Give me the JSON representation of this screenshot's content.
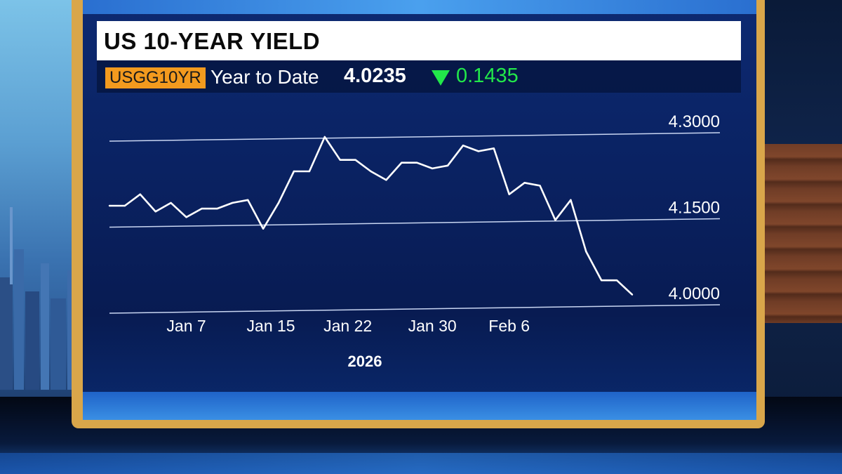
{
  "header": {
    "title": "US 10-YEAR YIELD",
    "ticker": "USGG10YR",
    "period": "Year to Date",
    "last_value": "4.0235",
    "change": "0.1435",
    "change_direction": "down",
    "change_color": "#22e84a",
    "ticker_color": "#f39a1e"
  },
  "chart_data": {
    "type": "line",
    "title": "US 10-YEAR YIELD",
    "xlabel": "2026",
    "ylabel": "",
    "ylim": [
      4.0,
      4.3
    ],
    "yticks": [
      "4.3000",
      "4.1500",
      "4.0000"
    ],
    "ytick_values": [
      4.3,
      4.15,
      4.0
    ],
    "xticks": [
      "Jan 7",
      "Jan 15",
      "Jan 22",
      "Jan 30",
      "Feb 6"
    ],
    "xtick_positions": [
      5,
      10.5,
      15.5,
      21,
      26
    ],
    "grid": true,
    "line_color": "#ffffff",
    "series": [
      {
        "values": [
          4.18,
          4.18,
          4.2,
          4.17,
          4.185,
          4.16,
          4.175,
          4.175,
          4.185,
          4.19,
          4.14,
          4.185,
          4.24,
          4.24,
          4.3,
          4.26,
          4.26,
          4.24,
          4.225,
          4.255,
          4.255,
          4.245,
          4.25,
          4.285,
          4.275,
          4.28,
          4.2,
          4.22,
          4.215,
          4.155,
          4.19,
          4.1,
          4.05,
          4.05,
          4.025
        ]
      }
    ]
  }
}
